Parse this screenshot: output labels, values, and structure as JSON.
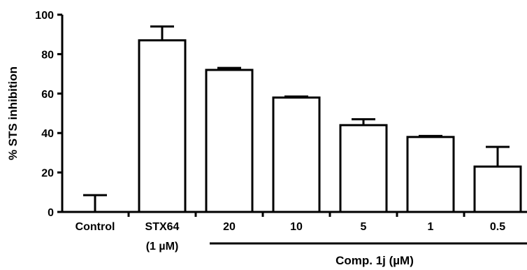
{
  "chart_data": {
    "type": "bar",
    "categories": [
      "Control",
      "STX64",
      "20",
      "10",
      "5",
      "1",
      "0.5"
    ],
    "category_sublabels": {
      "STX64": "(1 µM)"
    },
    "values": [
      0,
      87,
      72,
      58,
      44,
      38,
      23
    ],
    "error_up": [
      8.5,
      7,
      1,
      0.5,
      3,
      0.5,
      10
    ],
    "ylabel": "% STS inhibition",
    "ylim": [
      0,
      100
    ],
    "yticks": [
      0,
      20,
      40,
      60,
      80,
      100
    ],
    "group_label": "Comp. 1j (µM)",
    "group_categories": [
      "20",
      "10",
      "5",
      "1",
      "0.5"
    ],
    "colors": {
      "bar_fill": "#ffffff",
      "stroke": "#000000"
    },
    "grid": false,
    "legend": "none"
  }
}
